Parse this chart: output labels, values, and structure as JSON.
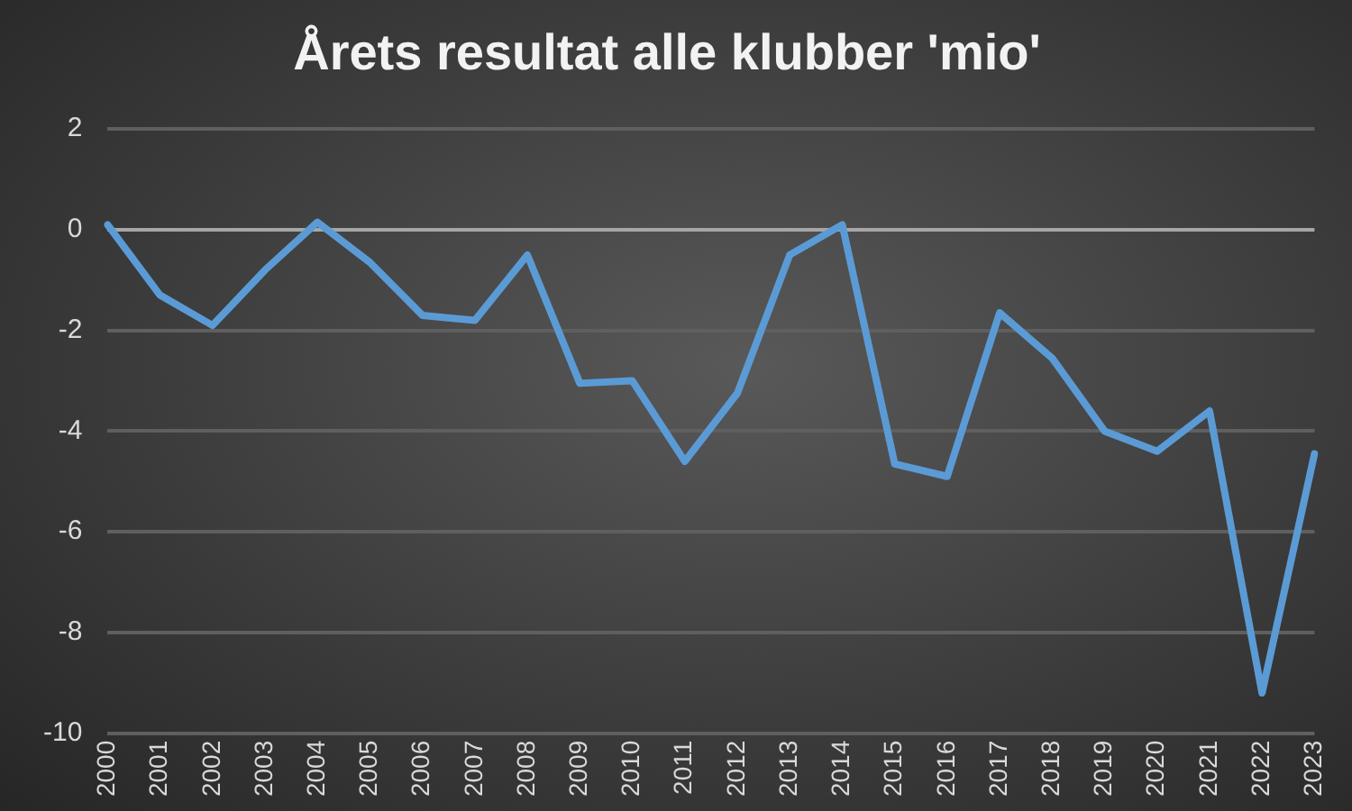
{
  "chart_data": {
    "type": "line",
    "title": "Årets resultat alle klubber 'mio'",
    "categories": [
      "2000",
      "2001",
      "2002",
      "2003",
      "2004",
      "2005",
      "2006",
      "2007",
      "2008",
      "2009",
      "2010",
      "2011",
      "2012",
      "2013",
      "2014",
      "2015",
      "2016",
      "2017",
      "2018",
      "2019",
      "2020",
      "2021",
      "2022",
      "2023"
    ],
    "series": [
      {
        "color": "#5b9bd5",
        "values": [
          0.1,
          -1.3,
          -1.9,
          -0.8,
          0.15,
          -0.65,
          -1.7,
          -1.8,
          -0.5,
          -3.05,
          -3.0,
          -4.6,
          -3.25,
          -0.5,
          0.1,
          -4.65,
          -4.9,
          -1.65,
          -2.55,
          -4.0,
          -4.4,
          -3.6,
          -9.2,
          -4.45
        ]
      }
    ],
    "ylim": [
      -10,
      2
    ],
    "yticks": [
      -10,
      -8,
      -6,
      -4,
      -2,
      0,
      2
    ],
    "grid": "y",
    "marker": "none",
    "line_style": "solid"
  }
}
